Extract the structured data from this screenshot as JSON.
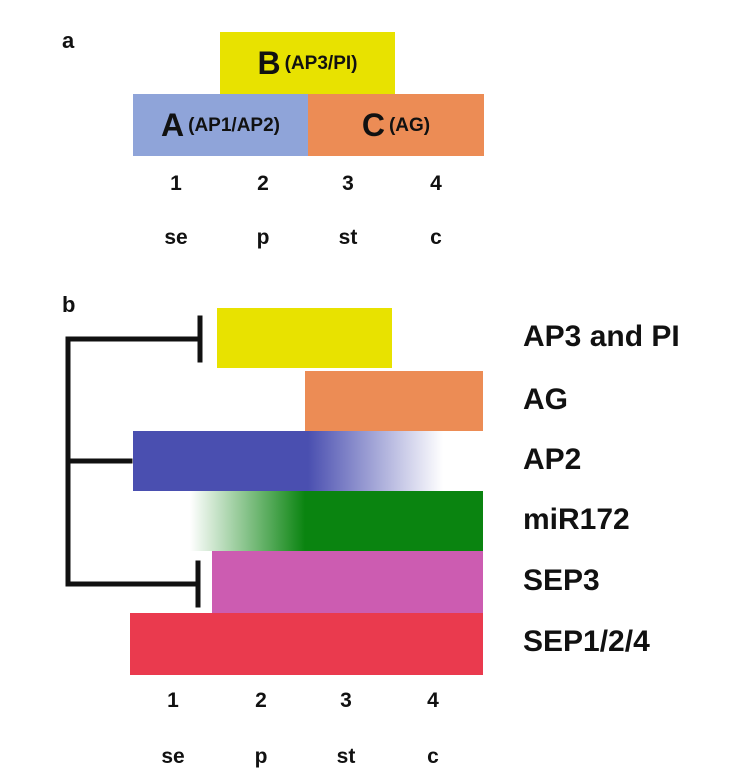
{
  "panel_a": {
    "label": "a",
    "b_box": {
      "big": "B",
      "small": "(AP3/PI)",
      "color": "#e8e200"
    },
    "a_box": {
      "big": "A",
      "small": "(AP1/AP2)",
      "color": "#8fa4d9"
    },
    "c_box": {
      "big": "C",
      "small": "(AG)",
      "color": "#ec8c55"
    },
    "whorl_numbers": [
      "1",
      "2",
      "3",
      "4"
    ],
    "whorl_abbreviations": [
      "se",
      "p",
      "st",
      "c"
    ]
  },
  "panel_b": {
    "label": "b",
    "genes": [
      {
        "name": "AP3 and PI",
        "color": "#e8e200"
      },
      {
        "name": "AG",
        "color": "#ec8c55"
      },
      {
        "name": "AP2",
        "color": "#4a4fb0"
      },
      {
        "name": "miR172",
        "color": "#0a8410"
      },
      {
        "name": "SEP3",
        "color": "#cc5cb1"
      },
      {
        "name": "SEP1/2/4",
        "color": "#ea3a4e"
      }
    ],
    "whorl_numbers": [
      "1",
      "2",
      "3",
      "4"
    ],
    "whorl_abbreviations": [
      "se",
      "p",
      "st",
      "c"
    ]
  }
}
